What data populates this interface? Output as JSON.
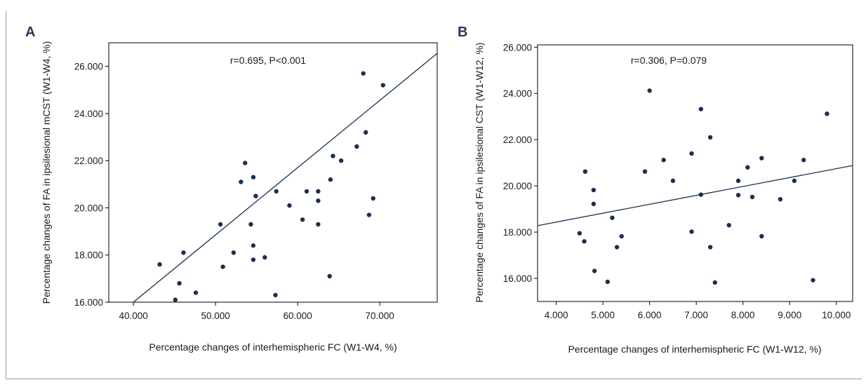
{
  "figure": {
    "panels_label": [
      "A",
      "B"
    ]
  },
  "chart_data": [
    {
      "panel": "A",
      "type": "scatter",
      "title": "",
      "annotation": "r=0.695, P<0.001",
      "xlabel": "Percentage changes of interhemispheric FC (W1-W4, %)",
      "ylabel": "Percentage changes of FA in ipsilesional mCST (W1-W4, %)",
      "xlim": [
        37.0,
        77.0
      ],
      "ylim": [
        16.0,
        27.0
      ],
      "xticks": [
        40,
        50,
        60,
        70
      ],
      "xtick_labels": [
        "40.000",
        "50.000",
        "60.000",
        "70.000"
      ],
      "yticks": [
        16,
        18,
        20,
        22,
        24,
        26
      ],
      "ytick_labels": [
        "16.000",
        "18.000",
        "20.000",
        "22.000",
        "24.000",
        "26.000"
      ],
      "grid": false,
      "color": "#1b2f4f",
      "points": [
        {
          "x": 43.2,
          "y": 17.6
        },
        {
          "x": 45.1,
          "y": 16.1
        },
        {
          "x": 45.6,
          "y": 16.8
        },
        {
          "x": 46.1,
          "y": 18.1
        },
        {
          "x": 47.6,
          "y": 16.4
        },
        {
          "x": 50.6,
          "y": 19.3
        },
        {
          "x": 50.9,
          "y": 17.5
        },
        {
          "x": 52.2,
          "y": 18.1
        },
        {
          "x": 53.1,
          "y": 21.1
        },
        {
          "x": 53.6,
          "y": 21.9
        },
        {
          "x": 54.3,
          "y": 19.3
        },
        {
          "x": 54.6,
          "y": 21.3
        },
        {
          "x": 54.6,
          "y": 18.4
        },
        {
          "x": 54.6,
          "y": 17.8
        },
        {
          "x": 54.9,
          "y": 20.5
        },
        {
          "x": 56.0,
          "y": 17.9
        },
        {
          "x": 57.4,
          "y": 20.7
        },
        {
          "x": 57.3,
          "y": 16.3
        },
        {
          "x": 59.0,
          "y": 20.1
        },
        {
          "x": 60.6,
          "y": 19.5
        },
        {
          "x": 61.1,
          "y": 20.7
        },
        {
          "x": 62.5,
          "y": 20.7
        },
        {
          "x": 62.5,
          "y": 20.3
        },
        {
          "x": 62.5,
          "y": 19.3
        },
        {
          "x": 63.9,
          "y": 17.1
        },
        {
          "x": 64.0,
          "y": 21.2
        },
        {
          "x": 64.3,
          "y": 22.2
        },
        {
          "x": 65.3,
          "y": 22.0
        },
        {
          "x": 67.2,
          "y": 22.6
        },
        {
          "x": 68.0,
          "y": 25.7
        },
        {
          "x": 68.3,
          "y": 23.2
        },
        {
          "x": 68.7,
          "y": 19.7
        },
        {
          "x": 69.2,
          "y": 20.4
        },
        {
          "x": 70.4,
          "y": 25.2
        }
      ],
      "fit_line": {
        "x": [
          40.0,
          77.0
        ],
        "y": [
          16.0,
          26.55
        ]
      }
    },
    {
      "panel": "B",
      "type": "scatter",
      "title": "",
      "annotation": "r=0.306, P=0.079",
      "xlabel": "Percentage changes of interhemispheric FC (W1-W12, %)",
      "ylabel": "Percentage changes of FA in ipsilesional CST (W1-W12, %)",
      "xlim": [
        3.6,
        10.35
      ],
      "ylim": [
        15.0,
        26.1
      ],
      "xticks": [
        4,
        5,
        6,
        7,
        8,
        9,
        10
      ],
      "xtick_labels": [
        "4.000",
        "5.000",
        "6.000",
        "7.000",
        "8.000",
        "9.000",
        "10.000"
      ],
      "yticks": [
        16,
        18,
        20,
        22,
        24,
        26
      ],
      "ytick_labels": [
        "16.000",
        "18.000",
        "20.000",
        "22.000",
        "24.000",
        "26.000"
      ],
      "grid": false,
      "color": "#1b2f4f",
      "points": [
        {
          "x": 4.5,
          "y": 17.95
        },
        {
          "x": 4.6,
          "y": 17.6
        },
        {
          "x": 4.62,
          "y": 20.62
        },
        {
          "x": 4.8,
          "y": 19.82
        },
        {
          "x": 4.8,
          "y": 19.22
        },
        {
          "x": 4.82,
          "y": 16.32
        },
        {
          "x": 5.1,
          "y": 15.85
        },
        {
          "x": 5.2,
          "y": 18.62
        },
        {
          "x": 5.3,
          "y": 17.35
        },
        {
          "x": 5.4,
          "y": 17.82
        },
        {
          "x": 5.9,
          "y": 20.62
        },
        {
          "x": 6.0,
          "y": 24.12
        },
        {
          "x": 6.3,
          "y": 21.12
        },
        {
          "x": 6.5,
          "y": 20.22
        },
        {
          "x": 6.9,
          "y": 21.4
        },
        {
          "x": 6.9,
          "y": 18.02
        },
        {
          "x": 7.1,
          "y": 23.32
        },
        {
          "x": 7.1,
          "y": 19.62
        },
        {
          "x": 7.3,
          "y": 22.1
        },
        {
          "x": 7.3,
          "y": 17.35
        },
        {
          "x": 7.4,
          "y": 15.82
        },
        {
          "x": 7.7,
          "y": 18.3
        },
        {
          "x": 7.9,
          "y": 20.22
        },
        {
          "x": 7.9,
          "y": 19.6
        },
        {
          "x": 8.1,
          "y": 20.8
        },
        {
          "x": 8.2,
          "y": 19.52
        },
        {
          "x": 8.4,
          "y": 21.2
        },
        {
          "x": 8.4,
          "y": 17.82
        },
        {
          "x": 8.8,
          "y": 19.42
        },
        {
          "x": 9.1,
          "y": 20.22
        },
        {
          "x": 9.3,
          "y": 21.12
        },
        {
          "x": 9.5,
          "y": 15.92
        },
        {
          "x": 9.8,
          "y": 23.12
        }
      ],
      "fit_line": {
        "x": [
          3.6,
          10.35
        ],
        "y": [
          18.28,
          20.88
        ]
      }
    }
  ]
}
